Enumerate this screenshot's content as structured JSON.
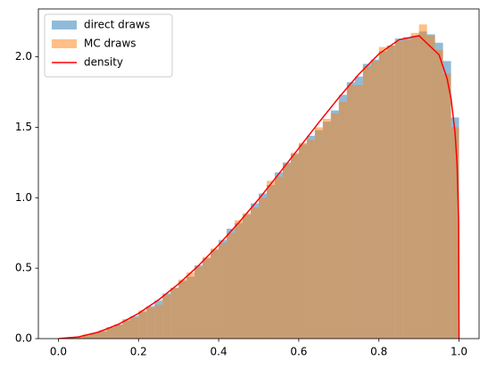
{
  "chart_data": {
    "type": "histogram",
    "bins": [
      0,
      0.02,
      0.04,
      0.06,
      0.08,
      0.1,
      0.12,
      0.14,
      0.16,
      0.18,
      0.2,
      0.22,
      0.24,
      0.26,
      0.28,
      0.3,
      0.32,
      0.34,
      0.36,
      0.38,
      0.4,
      0.42,
      0.44,
      0.46,
      0.48,
      0.5,
      0.52,
      0.54,
      0.56,
      0.58,
      0.6,
      0.62,
      0.64,
      0.66,
      0.68,
      0.7,
      0.72,
      0.74,
      0.76,
      0.78,
      0.8,
      0.82,
      0.84,
      0.86,
      0.88,
      0.9,
      0.92,
      0.94,
      0.96,
      0.98,
      1.0
    ],
    "series": [
      {
        "name": "direct draws",
        "color": "#1f77b4",
        "opacity": 0.5,
        "style": "histogram",
        "values": [
          0.0,
          0.01,
          0.01,
          0.02,
          0.04,
          0.05,
          0.08,
          0.1,
          0.13,
          0.16,
          0.19,
          0.23,
          0.27,
          0.32,
          0.36,
          0.41,
          0.44,
          0.52,
          0.57,
          0.63,
          0.7,
          0.78,
          0.82,
          0.88,
          0.96,
          1.03,
          1.09,
          1.18,
          1.25,
          1.31,
          1.38,
          1.44,
          1.48,
          1.54,
          1.62,
          1.73,
          1.82,
          1.86,
          1.95,
          1.98,
          2.04,
          2.08,
          2.13,
          2.14,
          2.15,
          2.18,
          2.16,
          2.1,
          1.97,
          1.57
        ]
      },
      {
        "name": "MC draws",
        "color": "#ff7f0e",
        "opacity": 0.5,
        "style": "histogram",
        "values": [
          0.0,
          0.01,
          0.01,
          0.03,
          0.04,
          0.06,
          0.08,
          0.1,
          0.14,
          0.15,
          0.2,
          0.22,
          0.24,
          0.31,
          0.36,
          0.42,
          0.47,
          0.51,
          0.58,
          0.64,
          0.68,
          0.75,
          0.84,
          0.89,
          0.93,
          1.0,
          1.12,
          1.15,
          1.24,
          1.32,
          1.39,
          1.41,
          1.5,
          1.56,
          1.6,
          1.68,
          1.8,
          1.8,
          1.93,
          1.97,
          2.07,
          2.08,
          2.11,
          2.12,
          2.17,
          2.23,
          2.15,
          2.05,
          1.88,
          1.5
        ]
      },
      {
        "name": "density",
        "color": "#ff0000",
        "style": "line",
        "x": [
          0,
          0.05,
          0.1,
          0.15,
          0.2,
          0.25,
          0.3,
          0.35,
          0.4,
          0.45,
          0.5,
          0.55,
          0.6,
          0.65,
          0.7,
          0.75,
          0.8,
          0.85,
          0.9,
          0.95,
          0.97,
          0.98,
          0.99,
          0.995,
          0.999,
          1.0
        ],
        "values": [
          0,
          0.012,
          0.046,
          0.102,
          0.179,
          0.275,
          0.389,
          0.519,
          0.665,
          0.823,
          0.99,
          1.169,
          1.351,
          1.534,
          1.711,
          1.877,
          2.021,
          2.121,
          2.15,
          2.015,
          1.848,
          1.705,
          1.462,
          1.243,
          0.838,
          0
        ]
      }
    ],
    "xlim": [
      -0.05,
      1.05
    ],
    "ylim": [
      0,
      2.34
    ],
    "xticks": [
      {
        "value": 0,
        "label": "0.0"
      },
      {
        "value": 0.2,
        "label": "0.2"
      },
      {
        "value": 0.4,
        "label": "0.4"
      },
      {
        "value": 0.6,
        "label": "0.6"
      },
      {
        "value": 0.8,
        "label": "0.8"
      },
      {
        "value": 1.0,
        "label": "1.0"
      }
    ],
    "yticks": [
      {
        "value": 0,
        "label": "0.0"
      },
      {
        "value": 0.5,
        "label": "0.5"
      },
      {
        "value": 1.0,
        "label": "1.0"
      },
      {
        "value": 1.5,
        "label": "1.5"
      },
      {
        "value": 2.0,
        "label": "2.0"
      }
    ],
    "legend": "upper left"
  }
}
